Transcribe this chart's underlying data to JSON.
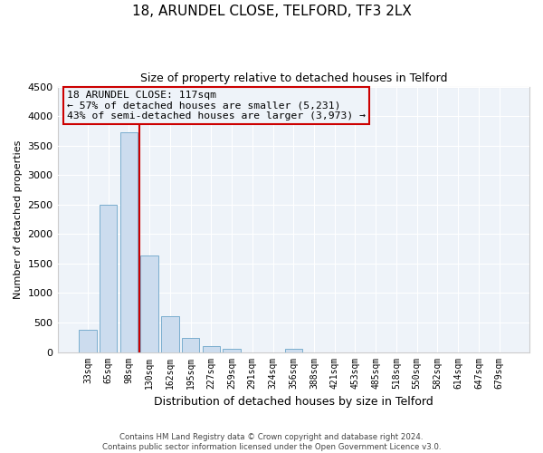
{
  "title": "18, ARUNDEL CLOSE, TELFORD, TF3 2LX",
  "subtitle": "Size of property relative to detached houses in Telford",
  "xlabel": "Distribution of detached houses by size in Telford",
  "ylabel": "Number of detached properties",
  "bar_color": "#ccdcee",
  "bar_edge_color": "#7aaece",
  "plot_bg_color": "#eef3f9",
  "fig_bg_color": "#ffffff",
  "grid_color": "#ffffff",
  "categories": [
    "33sqm",
    "65sqm",
    "98sqm",
    "130sqm",
    "162sqm",
    "195sqm",
    "227sqm",
    "259sqm",
    "291sqm",
    "324sqm",
    "356sqm",
    "388sqm",
    "421sqm",
    "453sqm",
    "485sqm",
    "518sqm",
    "550sqm",
    "582sqm",
    "614sqm",
    "647sqm",
    "679sqm"
  ],
  "values": [
    380,
    2500,
    3730,
    1630,
    600,
    240,
    100,
    60,
    0,
    0,
    55,
    0,
    0,
    0,
    0,
    0,
    0,
    0,
    0,
    0,
    0
  ],
  "ylim": [
    0,
    4500
  ],
  "yticks": [
    0,
    500,
    1000,
    1500,
    2000,
    2500,
    3000,
    3500,
    4000,
    4500
  ],
  "property_line_x": 2.5,
  "annotation_line1": "18 ARUNDEL CLOSE: 117sqm",
  "annotation_line2": "← 57% of detached houses are smaller (5,231)",
  "annotation_line3": "43% of semi-detached houses are larger (3,973) →",
  "annotation_box_edge": "#cc0000",
  "footer_line1": "Contains HM Land Registry data © Crown copyright and database right 2024.",
  "footer_line2": "Contains public sector information licensed under the Open Government Licence v3.0."
}
